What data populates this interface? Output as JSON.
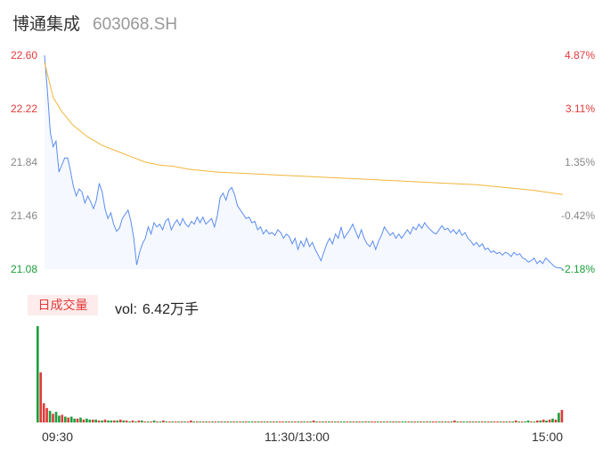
{
  "header": {
    "name": "博通集成",
    "code": "603068.SH"
  },
  "colors": {
    "up": "#e03a3a",
    "down": "#1a9e3a",
    "neutral": "#888888",
    "price": "#5b8def",
    "avg": "#f2b53a"
  },
  "chart_data": {
    "type": "line",
    "x_labels": [
      "09:30",
      "11:30/13:00",
      "15:00"
    ],
    "y_left_ticks": [
      "22.60",
      "22.22",
      "21.84",
      "21.46",
      "21.08"
    ],
    "y_right_ticks": [
      "4.87%",
      "3.11%",
      "1.35%",
      "-0.42%",
      "-2.18%"
    ],
    "ylim": [
      21.08,
      22.6
    ],
    "prev_close": 21.55,
    "price_points": [
      [
        0,
        22.6
      ],
      [
        1,
        22.35
      ],
      [
        2,
        22.05
      ],
      [
        3,
        21.95
      ],
      [
        4,
        21.99
      ],
      [
        5,
        21.77
      ],
      [
        6,
        21.82
      ],
      [
        7,
        21.87
      ],
      [
        8,
        21.87
      ],
      [
        9,
        21.78
      ],
      [
        10,
        21.67
      ],
      [
        11,
        21.6
      ],
      [
        12,
        21.65
      ],
      [
        13,
        21.63
      ],
      [
        14,
        21.55
      ],
      [
        15,
        21.6
      ],
      [
        16,
        21.56
      ],
      [
        17,
        21.51
      ],
      [
        18,
        21.57
      ],
      [
        19,
        21.69
      ],
      [
        20,
        21.63
      ],
      [
        21,
        21.51
      ],
      [
        22,
        21.44
      ],
      [
        23,
        21.48
      ],
      [
        24,
        21.4
      ],
      [
        25,
        21.35
      ],
      [
        26,
        21.37
      ],
      [
        27,
        21.44
      ],
      [
        28,
        21.47
      ],
      [
        29,
        21.5
      ],
      [
        30,
        21.42
      ],
      [
        31,
        21.3
      ],
      [
        32,
        21.11
      ],
      [
        33,
        21.2
      ],
      [
        34,
        21.26
      ],
      [
        35,
        21.3
      ],
      [
        36,
        21.38
      ],
      [
        37,
        21.33
      ],
      [
        38,
        21.41
      ],
      [
        39,
        21.38
      ],
      [
        40,
        21.4
      ],
      [
        41,
        21.36
      ],
      [
        42,
        21.42
      ],
      [
        43,
        21.44
      ],
      [
        44,
        21.36
      ],
      [
        45,
        21.4
      ],
      [
        46,
        21.43
      ],
      [
        47,
        21.39
      ],
      [
        48,
        21.44
      ],
      [
        49,
        21.4
      ],
      [
        50,
        21.38
      ],
      [
        51,
        21.42
      ],
      [
        52,
        21.4
      ],
      [
        53,
        21.45
      ],
      [
        54,
        21.41
      ],
      [
        55,
        21.45
      ],
      [
        56,
        21.4
      ],
      [
        57,
        21.42
      ],
      [
        58,
        21.44
      ],
      [
        59,
        21.38
      ],
      [
        60,
        21.46
      ],
      [
        61,
        21.59
      ],
      [
        62,
        21.62
      ],
      [
        63,
        21.57
      ],
      [
        64,
        21.64
      ],
      [
        65,
        21.66
      ],
      [
        66,
        21.61
      ],
      [
        67,
        21.53
      ],
      [
        68,
        21.5
      ],
      [
        69,
        21.47
      ],
      [
        70,
        21.44
      ],
      [
        71,
        21.45
      ],
      [
        72,
        21.41
      ],
      [
        73,
        21.42
      ],
      [
        74,
        21.36
      ],
      [
        75,
        21.38
      ],
      [
        76,
        21.33
      ],
      [
        77,
        21.36
      ],
      [
        78,
        21.33
      ],
      [
        79,
        21.34
      ],
      [
        80,
        21.32
      ],
      [
        81,
        21.36
      ],
      [
        82,
        21.34
      ],
      [
        83,
        21.3
      ],
      [
        84,
        21.33
      ],
      [
        85,
        21.31
      ],
      [
        86,
        21.26
      ],
      [
        87,
        21.3
      ],
      [
        88,
        21.22
      ],
      [
        89,
        21.28
      ],
      [
        90,
        21.24
      ],
      [
        91,
        21.3
      ],
      [
        92,
        21.24
      ],
      [
        93,
        21.27
      ],
      [
        94,
        21.22
      ],
      [
        95,
        21.18
      ],
      [
        96,
        21.14
      ],
      [
        97,
        21.2
      ],
      [
        98,
        21.26
      ],
      [
        99,
        21.3
      ],
      [
        100,
        21.26
      ],
      [
        101,
        21.33
      ],
      [
        102,
        21.3
      ],
      [
        103,
        21.38
      ],
      [
        104,
        21.3
      ],
      [
        105,
        21.33
      ],
      [
        106,
        21.36
      ],
      [
        107,
        21.4
      ],
      [
        108,
        21.35
      ],
      [
        109,
        21.3
      ],
      [
        110,
        21.36
      ],
      [
        111,
        21.3
      ],
      [
        112,
        21.26
      ],
      [
        113,
        21.24
      ],
      [
        114,
        21.28
      ],
      [
        115,
        21.22
      ],
      [
        116,
        21.28
      ],
      [
        117,
        21.32
      ],
      [
        118,
        21.38
      ],
      [
        119,
        21.35
      ],
      [
        120,
        21.32
      ],
      [
        121,
        21.34
      ],
      [
        122,
        21.3
      ],
      [
        123,
        21.33
      ],
      [
        124,
        21.3
      ],
      [
        125,
        21.33
      ],
      [
        126,
        21.36
      ],
      [
        127,
        21.33
      ],
      [
        128,
        21.38
      ],
      [
        129,
        21.36
      ],
      [
        130,
        21.4
      ],
      [
        131,
        21.37
      ],
      [
        132,
        21.41
      ],
      [
        133,
        21.38
      ],
      [
        134,
        21.36
      ],
      [
        135,
        21.34
      ],
      [
        136,
        21.33
      ],
      [
        137,
        21.36
      ],
      [
        138,
        21.39
      ],
      [
        139,
        21.36
      ],
      [
        140,
        21.37
      ],
      [
        141,
        21.34
      ],
      [
        142,
        21.36
      ],
      [
        143,
        21.33
      ],
      [
        144,
        21.36
      ],
      [
        145,
        21.32
      ],
      [
        146,
        21.34
      ],
      [
        147,
        21.3
      ],
      [
        148,
        21.28
      ],
      [
        149,
        21.25
      ],
      [
        150,
        21.27
      ],
      [
        151,
        21.24
      ],
      [
        152,
        21.26
      ],
      [
        153,
        21.22
      ],
      [
        154,
        21.23
      ],
      [
        155,
        21.2
      ],
      [
        156,
        21.21
      ],
      [
        157,
        21.19
      ],
      [
        158,
        21.2
      ],
      [
        159,
        21.18
      ],
      [
        160,
        21.2
      ],
      [
        161,
        21.19
      ],
      [
        162,
        21.17
      ],
      [
        163,
        21.2
      ],
      [
        164,
        21.18
      ],
      [
        165,
        21.19
      ],
      [
        166,
        21.16
      ],
      [
        167,
        21.15
      ],
      [
        168,
        21.13
      ],
      [
        169,
        21.14
      ],
      [
        170,
        21.16
      ],
      [
        171,
        21.12
      ],
      [
        172,
        21.14
      ],
      [
        173,
        21.12
      ],
      [
        174,
        21.16
      ],
      [
        175,
        21.14
      ],
      [
        176,
        21.12
      ],
      [
        177,
        21.1
      ],
      [
        178,
        21.09
      ],
      [
        179,
        21.09
      ],
      [
        180,
        21.08
      ]
    ],
    "avg_points": [
      [
        0,
        22.55
      ],
      [
        3,
        22.3
      ],
      [
        6,
        22.2
      ],
      [
        10,
        22.1
      ],
      [
        15,
        22.02
      ],
      [
        20,
        21.96
      ],
      [
        25,
        21.92
      ],
      [
        30,
        21.88
      ],
      [
        35,
        21.84
      ],
      [
        40,
        21.82
      ],
      [
        45,
        21.81
      ],
      [
        50,
        21.79
      ],
      [
        60,
        21.77
      ],
      [
        70,
        21.76
      ],
      [
        80,
        21.75
      ],
      [
        90,
        21.74
      ],
      [
        100,
        21.73
      ],
      [
        110,
        21.72
      ],
      [
        120,
        21.71
      ],
      [
        130,
        21.7
      ],
      [
        140,
        21.69
      ],
      [
        150,
        21.68
      ],
      [
        160,
        21.66
      ],
      [
        170,
        21.64
      ],
      [
        180,
        21.61
      ]
    ],
    "volume": {
      "label": "日成交量",
      "vol_key": "vol:",
      "vol_value": "6.42万手",
      "bars": [
        [
          "d",
          100
        ],
        [
          "u",
          52
        ],
        [
          "u",
          20
        ],
        [
          "u",
          15
        ],
        [
          "d",
          12
        ],
        [
          "u",
          9
        ],
        [
          "d",
          11
        ],
        [
          "d",
          7
        ],
        [
          "u",
          8
        ],
        [
          "d",
          6
        ],
        [
          "u",
          5
        ],
        [
          "d",
          6
        ],
        [
          "d",
          4
        ],
        [
          "u",
          4
        ],
        [
          "d",
          5
        ],
        [
          "u",
          3
        ],
        [
          "d",
          4
        ],
        [
          "d",
          3
        ],
        [
          "u",
          3
        ],
        [
          "d",
          3
        ],
        [
          "u",
          2
        ],
        [
          "d",
          2
        ],
        [
          "u",
          3
        ],
        [
          "d",
          2
        ],
        [
          "d",
          2
        ],
        [
          "u",
          2
        ],
        [
          "d",
          2
        ],
        [
          "u",
          3
        ],
        [
          "d",
          2
        ],
        [
          "u",
          2
        ],
        [
          "d",
          1
        ],
        [
          "u",
          2
        ],
        [
          "d",
          1
        ],
        [
          "u",
          2
        ],
        [
          "d",
          2
        ],
        [
          "u",
          1
        ],
        [
          "d",
          1
        ],
        [
          "u",
          1
        ],
        [
          "d",
          2
        ],
        [
          "u",
          1
        ],
        [
          "d",
          1
        ],
        [
          "u",
          2
        ],
        [
          "d",
          1
        ],
        [
          "u",
          1
        ],
        [
          "d",
          1
        ],
        [
          "u",
          1
        ],
        [
          "d",
          1
        ],
        [
          "u",
          1
        ],
        [
          "d",
          1
        ],
        [
          "u",
          1
        ],
        [
          "u",
          2
        ],
        [
          "d",
          1
        ],
        [
          "u",
          1
        ],
        [
          "d",
          1
        ],
        [
          "u",
          1
        ],
        [
          "d",
          1
        ],
        [
          "u",
          1
        ],
        [
          "d",
          1
        ],
        [
          "u",
          1
        ],
        [
          "d",
          1
        ],
        [
          "u",
          1
        ],
        [
          "d",
          1
        ],
        [
          "u",
          1
        ],
        [
          "d",
          1
        ],
        [
          "u",
          1
        ],
        [
          "d",
          1
        ],
        [
          "u",
          1
        ],
        [
          "d",
          1
        ],
        [
          "u",
          1
        ],
        [
          "d",
          1
        ],
        [
          "d",
          1
        ],
        [
          "u",
          1
        ],
        [
          "d",
          1
        ],
        [
          "u",
          1
        ],
        [
          "d",
          1
        ],
        [
          "u",
          1
        ],
        [
          "d",
          1
        ],
        [
          "u",
          1
        ],
        [
          "d",
          1
        ],
        [
          "u",
          1
        ],
        [
          "u",
          1
        ],
        [
          "d",
          1
        ],
        [
          "u",
          1
        ],
        [
          "d",
          1
        ],
        [
          "u",
          1
        ],
        [
          "d",
          1
        ],
        [
          "u",
          1
        ],
        [
          "d",
          1
        ],
        [
          "u",
          1
        ],
        [
          "d",
          1
        ],
        [
          "u",
          2
        ],
        [
          "d",
          1
        ],
        [
          "u",
          1
        ],
        [
          "d",
          1
        ],
        [
          "u",
          1
        ],
        [
          "d",
          1
        ],
        [
          "u",
          1
        ],
        [
          "d",
          1
        ],
        [
          "u",
          1
        ],
        [
          "d",
          1
        ],
        [
          "d",
          1
        ],
        [
          "u",
          1
        ],
        [
          "d",
          1
        ],
        [
          "u",
          1
        ],
        [
          "d",
          1
        ],
        [
          "u",
          1
        ],
        [
          "d",
          1
        ],
        [
          "u",
          1
        ],
        [
          "d",
          1
        ],
        [
          "u",
          1
        ],
        [
          "u",
          1
        ],
        [
          "d",
          1
        ],
        [
          "u",
          1
        ],
        [
          "d",
          1
        ],
        [
          "u",
          1
        ],
        [
          "d",
          1
        ],
        [
          "u",
          1
        ],
        [
          "d",
          1
        ],
        [
          "u",
          1
        ],
        [
          "d",
          1
        ],
        [
          "d",
          1
        ],
        [
          "u",
          1
        ],
        [
          "d",
          1
        ],
        [
          "u",
          1
        ],
        [
          "d",
          1
        ],
        [
          "u",
          1
        ],
        [
          "d",
          1
        ],
        [
          "u",
          1
        ],
        [
          "d",
          1
        ],
        [
          "u",
          1
        ],
        [
          "u",
          1
        ],
        [
          "d",
          1
        ],
        [
          "u",
          1
        ],
        [
          "d",
          1
        ],
        [
          "u",
          1
        ],
        [
          "d",
          1
        ],
        [
          "u",
          2
        ],
        [
          "d",
          1
        ],
        [
          "u",
          1
        ],
        [
          "d",
          1
        ],
        [
          "d",
          1
        ],
        [
          "u",
          1
        ],
        [
          "d",
          1
        ],
        [
          "u",
          1
        ],
        [
          "d",
          1
        ],
        [
          "u",
          1
        ],
        [
          "d",
          1
        ],
        [
          "u",
          1
        ],
        [
          "d",
          1
        ],
        [
          "u",
          1
        ],
        [
          "u",
          1
        ],
        [
          "d",
          1
        ],
        [
          "u",
          1
        ],
        [
          "d",
          1
        ],
        [
          "u",
          1
        ],
        [
          "d",
          1
        ],
        [
          "u",
          2
        ],
        [
          "d",
          1
        ],
        [
          "u",
          1
        ],
        [
          "d",
          1
        ],
        [
          "d",
          2
        ],
        [
          "u",
          1
        ],
        [
          "d",
          1
        ],
        [
          "u",
          2
        ],
        [
          "d",
          2
        ],
        [
          "u",
          3
        ],
        [
          "d",
          2
        ],
        [
          "u",
          3
        ],
        [
          "d",
          4
        ],
        [
          "u",
          3
        ],
        [
          "d",
          10
        ],
        [
          "u",
          13
        ]
      ]
    }
  }
}
